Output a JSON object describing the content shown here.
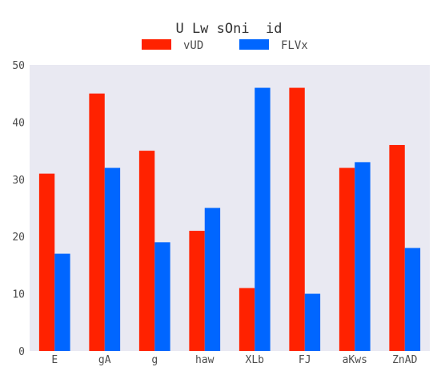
{
  "chart_data": {
    "type": "bar",
    "title": "U Lw sOni  id",
    "xlabel": "",
    "ylabel": "",
    "categories": [
      "E",
      "gA",
      "g",
      "haw",
      "XLb",
      "FJ",
      "aKws",
      "ZnAD"
    ],
    "series": [
      {
        "name": "vUD",
        "color": "#ff2200",
        "values": [
          31,
          45,
          35,
          21,
          11,
          46,
          32,
          36
        ]
      },
      {
        "name": "FLVx",
        "color": "#0066ff",
        "values": [
          17,
          32,
          19,
          25,
          46,
          10,
          33,
          18
        ]
      }
    ],
    "ylim": [
      0,
      50
    ],
    "yticks": [
      0,
      10,
      20,
      30,
      40,
      50
    ],
    "grid": false,
    "legend_position": "top-center",
    "plot_background": "#e9e9f2"
  }
}
